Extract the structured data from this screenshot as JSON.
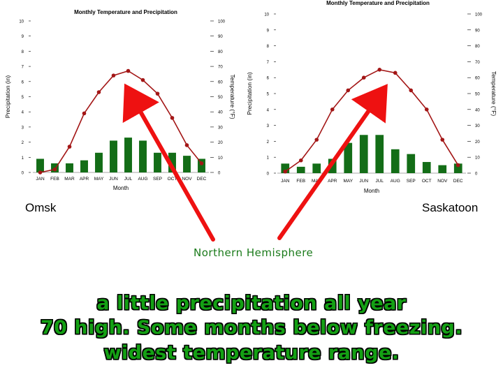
{
  "chart_data": [
    {
      "type": "bar+line",
      "city": "Omsk",
      "title": "Monthly Temperature and Precipitation",
      "xlabel": "Month",
      "ylabel_left": "Precipitation (in)",
      "ylabel_right": "Temperature (°F)",
      "ylim_precip": [
        0,
        10
      ],
      "ylim_temp": [
        0,
        100
      ],
      "categories": [
        "JAN",
        "FEB",
        "MAR",
        "APR",
        "MAY",
        "JUN",
        "JUL",
        "AUG",
        "SEP",
        "OCT",
        "NOV",
        "DEC"
      ],
      "series": [
        {
          "name": "Precipitation (in)",
          "kind": "bar",
          "color": "#136d17",
          "values": [
            0.9,
            0.6,
            0.6,
            0.8,
            1.3,
            2.1,
            2.3,
            2.1,
            1.3,
            1.3,
            1.1,
            0.9
          ]
        },
        {
          "name": "Temperature (°F)",
          "kind": "line",
          "color": "#a31616",
          "values": [
            0,
            2,
            17,
            39,
            53,
            64,
            67,
            61,
            52,
            36,
            18,
            6
          ]
        }
      ],
      "precip_ticks": [
        0,
        1,
        2,
        3,
        4,
        5,
        6,
        7,
        8,
        9,
        10
      ],
      "temp_ticks": [
        0,
        10,
        20,
        30,
        40,
        50,
        60,
        70,
        80,
        90,
        100
      ]
    },
    {
      "type": "bar+line",
      "city": "Saskatoon",
      "title": "Monthly Temperature and Precipitation",
      "xlabel": "Month",
      "ylabel_left": "Precipitation (in)",
      "ylabel_right": "Temperature (°F)",
      "ylim_precip": [
        0,
        10
      ],
      "ylim_temp": [
        0,
        100
      ],
      "categories": [
        "JAN",
        "FEB",
        "MAR",
        "APR",
        "MAY",
        "JUN",
        "JUL",
        "AUG",
        "SEP",
        "OCT",
        "NOV",
        "DEC"
      ],
      "series": [
        {
          "name": "Precipitation (in)",
          "kind": "bar",
          "color": "#136d17",
          "values": [
            0.6,
            0.4,
            0.6,
            0.9,
            1.9,
            2.4,
            2.4,
            1.5,
            1.2,
            0.7,
            0.5,
            0.6
          ]
        },
        {
          "name": "Temperature (°F)",
          "kind": "line",
          "color": "#a31616",
          "values": [
            1,
            8,
            21,
            40,
            52,
            60,
            65,
            63,
            52,
            40,
            21,
            5
          ]
        }
      ],
      "precip_ticks": [
        0,
        1,
        2,
        3,
        4,
        5,
        6,
        7,
        8,
        9,
        10
      ],
      "temp_ticks": [
        0,
        10,
        20,
        30,
        40,
        50,
        60,
        70,
        80,
        90,
        100
      ]
    }
  ],
  "labels": {
    "omsk": "Omsk",
    "saskatoon": "Saskatoon",
    "arrow_note": "Northern Hemisphere"
  },
  "headlines": [
    "a little precipitation all year",
    "70 high.  Some months below freezing.",
    "widest temperature range."
  ],
  "colors": {
    "arrow": "#ee1111",
    "headline_fill": "#14a014"
  }
}
